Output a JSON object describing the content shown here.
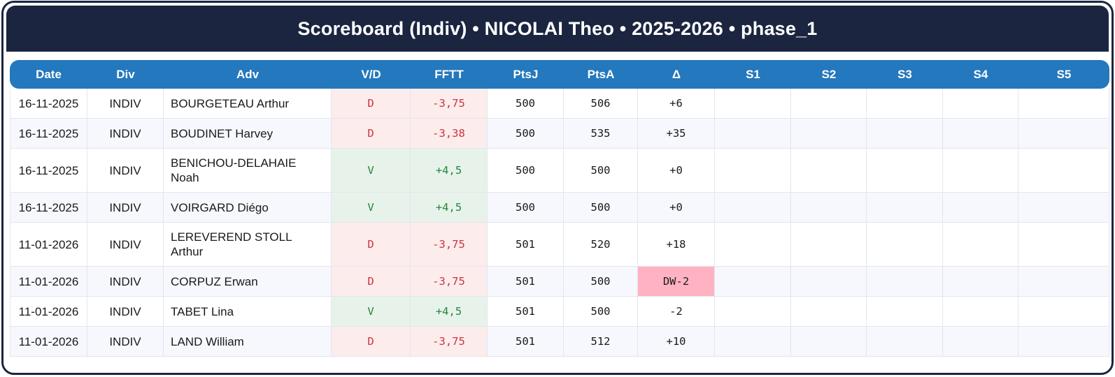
{
  "title": "Scoreboard (Indiv) • NICOLAI Theo • 2025-2026 • phase_1",
  "colors": {
    "navy": "#1b2540",
    "header_blue": "#2478bd",
    "win_text": "#28843f",
    "win_bg": "#e7f3ea",
    "loss_text": "#cc3344",
    "loss_bg": "#fceceb",
    "delta_highlight_bg": "#ffb3c2",
    "alt_row_bg": "#f7f8fd"
  },
  "table": {
    "columns": [
      "Date",
      "Div",
      "Adv",
      "V/D",
      "FFTT",
      "PtsJ",
      "PtsA",
      "Δ",
      "S1",
      "S2",
      "S3",
      "S4",
      "S5"
    ],
    "rows": [
      {
        "date": "16-11-2025",
        "div": "INDIV",
        "adv": "BOURGETEAU Arthur",
        "vd": "D",
        "fftt": "-3,75",
        "ptsj": "500",
        "ptsa": "506",
        "delta": "+6",
        "result": "loss",
        "delta_highlight": false,
        "s1": "",
        "s2": "",
        "s3": "",
        "s4": "",
        "s5": ""
      },
      {
        "date": "16-11-2025",
        "div": "INDIV",
        "adv": "BOUDINET Harvey",
        "vd": "D",
        "fftt": "-3,38",
        "ptsj": "500",
        "ptsa": "535",
        "delta": "+35",
        "result": "loss",
        "delta_highlight": false,
        "s1": "",
        "s2": "",
        "s3": "",
        "s4": "",
        "s5": ""
      },
      {
        "date": "16-11-2025",
        "div": "INDIV",
        "adv": "BENICHOU-DELAHAIE Noah",
        "vd": "V",
        "fftt": "+4,5",
        "ptsj": "500",
        "ptsa": "500",
        "delta": "+0",
        "result": "win",
        "delta_highlight": false,
        "s1": "",
        "s2": "",
        "s3": "",
        "s4": "",
        "s5": ""
      },
      {
        "date": "16-11-2025",
        "div": "INDIV",
        "adv": "VOIRGARD Diégo",
        "vd": "V",
        "fftt": "+4,5",
        "ptsj": "500",
        "ptsa": "500",
        "delta": "+0",
        "result": "win",
        "delta_highlight": false,
        "s1": "",
        "s2": "",
        "s3": "",
        "s4": "",
        "s5": ""
      },
      {
        "date": "11-01-2026",
        "div": "INDIV",
        "adv": "LEREVEREND STOLL Arthur",
        "vd": "D",
        "fftt": "-3,75",
        "ptsj": "501",
        "ptsa": "520",
        "delta": "+18",
        "result": "loss",
        "delta_highlight": false,
        "s1": "",
        "s2": "",
        "s3": "",
        "s4": "",
        "s5": ""
      },
      {
        "date": "11-01-2026",
        "div": "INDIV",
        "adv": "CORPUZ Erwan",
        "vd": "D",
        "fftt": "-3,75",
        "ptsj": "501",
        "ptsa": "500",
        "delta": "DW-2",
        "result": "loss",
        "delta_highlight": true,
        "s1": "",
        "s2": "",
        "s3": "",
        "s4": "",
        "s5": ""
      },
      {
        "date": "11-01-2026",
        "div": "INDIV",
        "adv": "TABET Lina",
        "vd": "V",
        "fftt": "+4,5",
        "ptsj": "501",
        "ptsa": "500",
        "delta": "-2",
        "result": "win",
        "delta_highlight": false,
        "s1": "",
        "s2": "",
        "s3": "",
        "s4": "",
        "s5": ""
      },
      {
        "date": "11-01-2026",
        "div": "INDIV",
        "adv": "LAND William",
        "vd": "D",
        "fftt": "-3,75",
        "ptsj": "501",
        "ptsa": "512",
        "delta": "+10",
        "result": "loss",
        "delta_highlight": false,
        "s1": "",
        "s2": "",
        "s3": "",
        "s4": "",
        "s5": ""
      }
    ]
  }
}
